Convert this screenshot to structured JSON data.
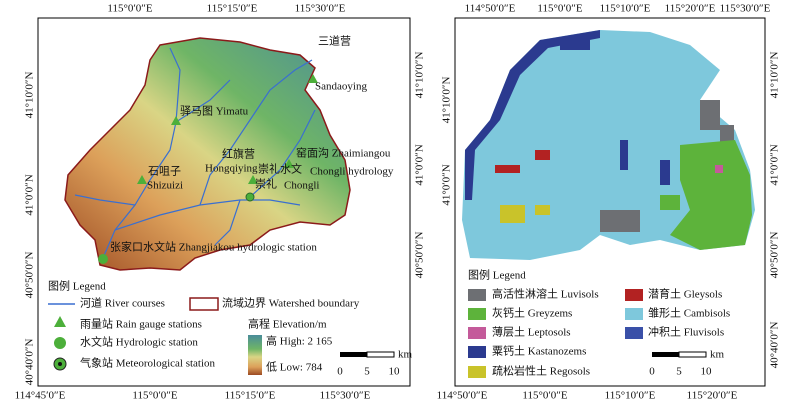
{
  "left_map": {
    "top_labels": [
      "115°0′0″E",
      "115°15′0″E",
      "115°30′0″E"
    ],
    "bottom_labels": [
      "114°45′0″E",
      "115°0′0″E",
      "115°15′0″E",
      "115°30′0″E"
    ],
    "left_labels": [
      "41°10′0″N",
      "41°0′0″N",
      "40°50′0″N",
      "40°40′0″N"
    ],
    "right_labels": [
      "41°10′0″N",
      "41°0′0″N",
      "40°50′0″N"
    ],
    "stations": [
      "三道营",
      "Sandaoying",
      "驿马图 Yimatu",
      "窑面沟 Zhaimiangou",
      "红旗营",
      "Hongqiying",
      "崇礼水文",
      "Chongli hydrology",
      "石咀子",
      "Shizuizi",
      "崇礼",
      "Chongli",
      "张家口水文站 Zhangjiakou hydrologic station"
    ],
    "legend": {
      "title": "图例 Legend",
      "items": [
        "河道 River courses",
        "流域边界 Watershed boundary",
        "雨量站 Rain gauge stations",
        "水文站 Hydrologic station",
        "气象站 Meteorological station"
      ],
      "elevation_title": "高程 Elevation/m",
      "high": "高 High: 2 165",
      "low": "低 Low: 784"
    },
    "scale": {
      "ticks": [
        "0",
        "5",
        "10"
      ],
      "unit": "km"
    }
  },
  "right_map": {
    "top_labels": [
      "114°50′0″E",
      "115°0′0″E",
      "115°10′0″E",
      "115°20′0″E",
      "115°30′0″E"
    ],
    "bottom_labels": [
      "114°50′0″E",
      "115°0′0″E",
      "115°10′0″E",
      "115°20′0″E"
    ],
    "left_labels": [
      "41°10′0″N",
      "41°0′0″N"
    ],
    "right_labels": [
      "41°10′0″N",
      "41°0′0″N",
      "40°50′0″N",
      "40°40′0″N"
    ],
    "legend": {
      "title": "图例 Legend",
      "items": [
        "高活性淋溶土 Luvisols",
        "灰钙土 Greyzems",
        "薄层土 Leptosols",
        "粟钙土 Kastanozems",
        "疏松岩性土 Regosols",
        "潜育土 Gleysols",
        "雏形土 Cambisols",
        "冲积土 Fluvisols"
      ]
    },
    "scale": {
      "ticks": [
        "0",
        "5",
        "10"
      ],
      "unit": "km"
    }
  }
}
